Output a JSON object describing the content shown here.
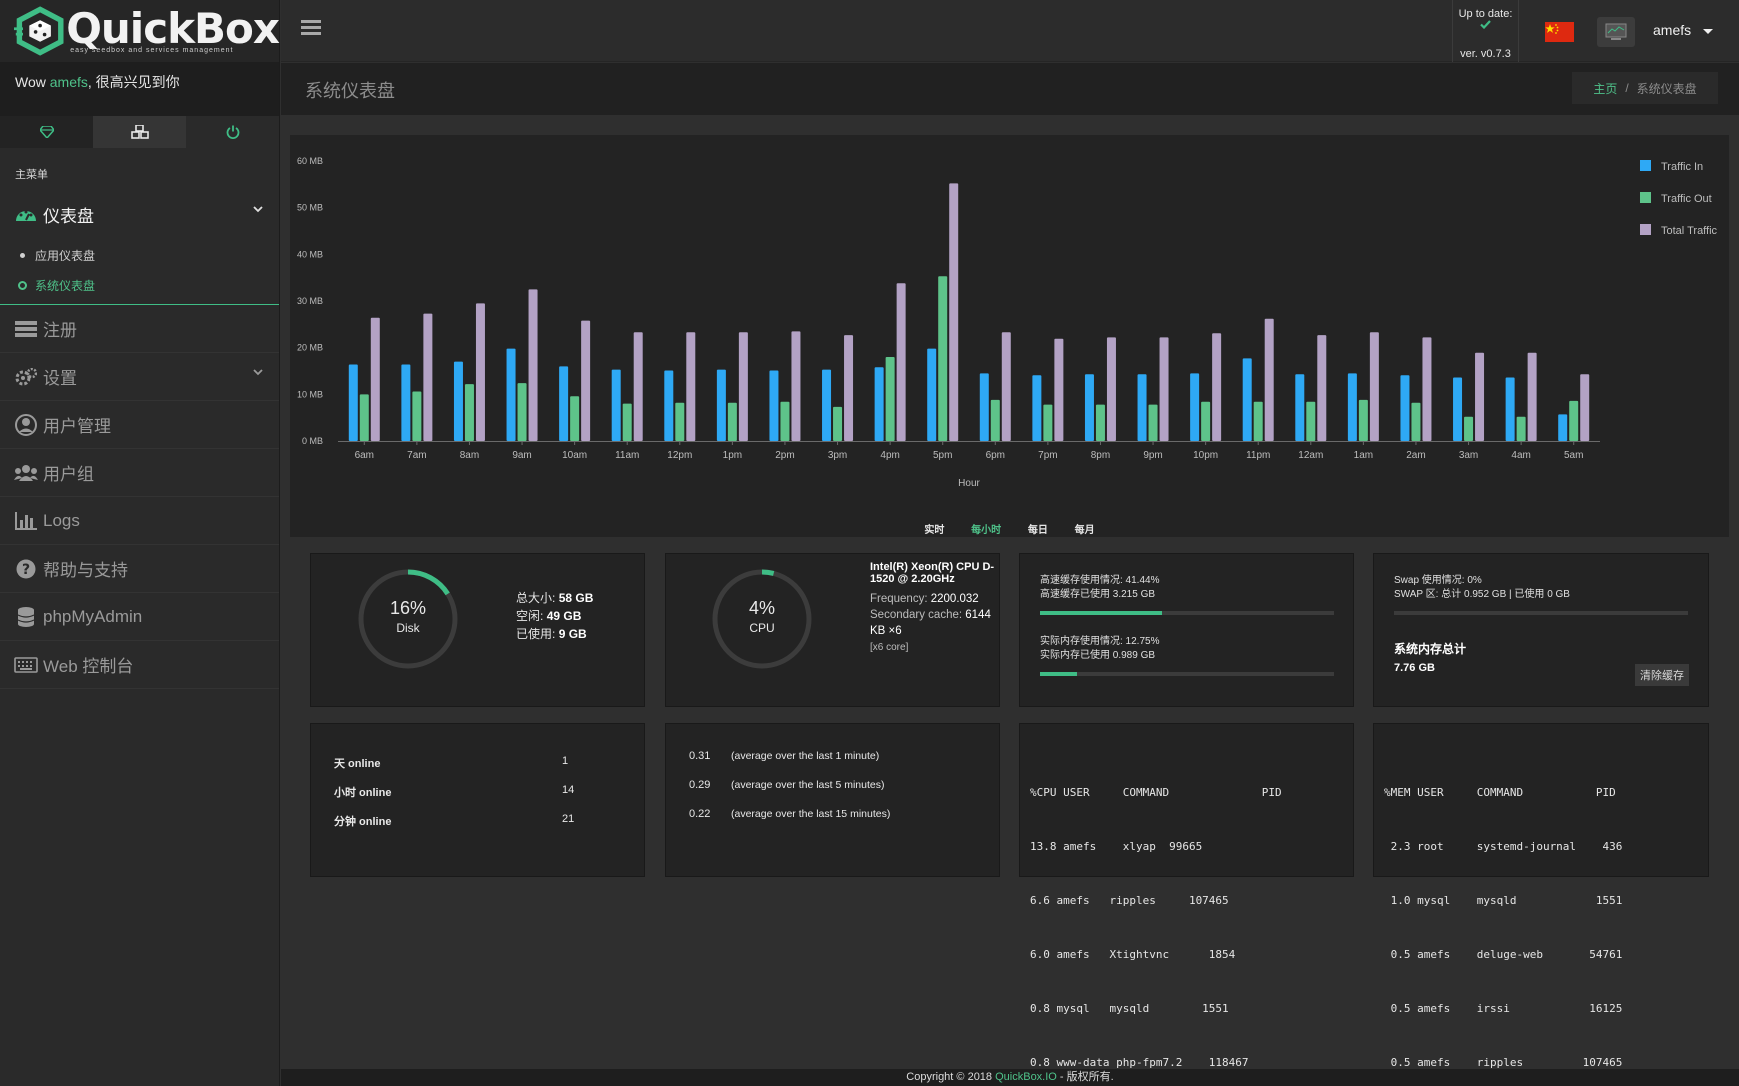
{
  "app": {
    "logo_text": "QuickBox",
    "logo_subtitle": "easy seedbox and services management"
  },
  "sidebar": {
    "welcome_prefix": "Wow ",
    "welcome_user": "amefs",
    "welcome_suffix": ", 很高兴见到你",
    "menu_title": "主菜单",
    "dashboard_label": "仪表盘",
    "sub_items": [
      {
        "label": "应用仪表盘"
      },
      {
        "label": "系统仪表盘"
      }
    ],
    "items": [
      {
        "label": "注册"
      },
      {
        "label": "设置"
      },
      {
        "label": "用户管理"
      },
      {
        "label": "用户组"
      },
      {
        "label": "Logs"
      },
      {
        "label": "帮助与支持"
      },
      {
        "label": "phpMyAdmin"
      },
      {
        "label": "Web 控制台"
      }
    ]
  },
  "header": {
    "update_status": "Up to date:",
    "version": "ver. v0.7.3",
    "username": "amefs"
  },
  "page": {
    "title": "系统仪表盘",
    "breadcrumb_home": "主页",
    "breadcrumb_sep": "/",
    "breadcrumb_current": "系统仪表盘"
  },
  "chart_tabs": [
    "实时",
    "每小时",
    "每日",
    "每月"
  ],
  "chart_data": {
    "type": "bar",
    "xlabel": "Hour",
    "ylabel": "",
    "ylim": [
      0,
      60
    ],
    "yticks": [
      "0 MB",
      "10 MB",
      "20 MB",
      "30 MB",
      "40 MB",
      "50 MB",
      "60 MB"
    ],
    "grid": false,
    "legend_position": "top-right",
    "categories": [
      "6am",
      "7am",
      "8am",
      "9am",
      "10am",
      "11am",
      "12pm",
      "1pm",
      "2pm",
      "3pm",
      "4pm",
      "5pm",
      "6pm",
      "7pm",
      "8pm",
      "9pm",
      "10pm",
      "11pm",
      "12am",
      "1am",
      "2am",
      "3am",
      "4am",
      "5am"
    ],
    "series": [
      {
        "name": "Traffic In",
        "color": "#2ea9f5",
        "values": [
          16.4,
          16.4,
          17,
          19.8,
          16,
          15.3,
          15.1,
          15.3,
          15.1,
          15.3,
          15.8,
          19.8,
          14.5,
          14.1,
          14.3,
          14.3,
          14.5,
          17.7,
          14.3,
          14.5,
          14.1,
          13.6,
          13.6,
          5.7
        ]
      },
      {
        "name": "Traffic Out",
        "color": "#5ec38a",
        "values": [
          10,
          10.6,
          12.2,
          12.4,
          9.6,
          8,
          8.2,
          8.2,
          8.4,
          7.3,
          18,
          35.3,
          8.8,
          7.8,
          7.8,
          7.8,
          8.4,
          8.4,
          8.4,
          8.8,
          8.2,
          5.2,
          5.2,
          8.6
        ]
      },
      {
        "name": "Total Traffic",
        "color": "#b3a2c5",
        "values": [
          26.4,
          27.3,
          29.5,
          32.5,
          25.8,
          23.3,
          23.3,
          23.3,
          23.5,
          22.7,
          33.8,
          55.2,
          23.3,
          21.9,
          22.2,
          22.2,
          23.1,
          26.2,
          22.7,
          23.3,
          22.2,
          18.9,
          18.9,
          14.3
        ]
      }
    ]
  },
  "disk": {
    "percent": 16,
    "percent_text": "16%",
    "label": "Disk",
    "total_label": "总大小:",
    "total": "58 GB",
    "free_label": "空闲:",
    "free": "49 GB",
    "used_label": "已使用:",
    "used": "9 GB"
  },
  "cpu": {
    "percent": 4,
    "percent_text": "4%",
    "label": "CPU",
    "model": "Intel(R) Xeon(R) CPU D-1520 @ 2.20GHz",
    "freq_label": "Frequency:",
    "freq": "2200.032",
    "cache_label": "Secondary cache:",
    "cache": "6144 KB ×6",
    "cores": "[x6 core]"
  },
  "memory": {
    "cache_usage": "高速缓存使用情况: 41.44%",
    "cache_used": "高速缓存已使用 3.215 GB",
    "cache_fraction": 0.4144,
    "real_usage": "实际内存使用情况: 12.75%",
    "real_used": "实际内存已使用 0.989 GB",
    "real_fraction": 0.1275
  },
  "swap": {
    "usage": "Swap 使用情况: 0%",
    "detail": "SWAP 区: 总计 0.952 GB | 已使用 0 GB",
    "fraction": 0,
    "total_title": "系统内存总计",
    "total": "7.76 GB",
    "clear_button": "清除缓存"
  },
  "online": [
    {
      "label": "天 online",
      "value": "1"
    },
    {
      "label": "小时 online",
      "value": "14"
    },
    {
      "label": "分钟 online",
      "value": "21"
    }
  ],
  "load": [
    {
      "value": "0.31",
      "desc": "(average over the last 1 minute)"
    },
    {
      "value": "0.29",
      "desc": "(average over the last 5 minutes)"
    },
    {
      "value": "0.22",
      "desc": "(average over the last 15 minutes)"
    }
  ],
  "cpu_procs": {
    "header": "%CPU USER     COMMAND              PID",
    "rows": [
      "13.8 amefs    xlyap  99665",
      "6.6 amefs   ripples     107465",
      "6.0 amefs   Xtightvnc      1854",
      "0.8 mysql   mysqld        1551",
      "0.8 www-data php-fpm7.2    118467"
    ]
  },
  "mem_procs": {
    "header": "%MEM USER     COMMAND           PID",
    "rows": [
      " 2.3 root     systemd-journal    436",
      " 1.0 mysql    mysqld            1551",
      " 0.5 amefs    deluge-web       54761",
      " 0.5 amefs    irssi            16125",
      " 0.5 amefs    ripples         107465"
    ]
  },
  "footer": {
    "prefix": "Copyright © 2018 ",
    "link": "QuickBox.IO",
    "suffix": " - 版权所有."
  },
  "colors": {
    "accent": "#4fc28a",
    "traffic_in": "#2ea9f5",
    "traffic_out": "#5ec38a",
    "total": "#b3a2c5"
  }
}
